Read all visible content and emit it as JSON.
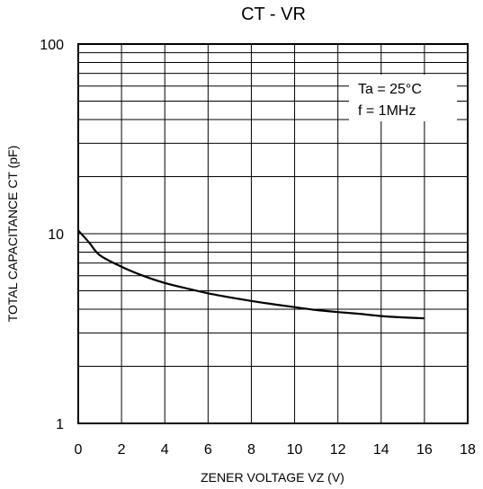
{
  "chart_data": {
    "type": "line",
    "title": "CT - VR",
    "xlabel": "ZENER VOLTAGE  VZ (V)",
    "ylabel": "TOTAL CAPACITANCE  CT (pF)",
    "xlim": [
      0,
      18
    ],
    "ylim": [
      1,
      100
    ],
    "yscale": "log",
    "grid": true,
    "x_ticks": [
      "0",
      "2",
      "4",
      "6",
      "8",
      "10",
      "12",
      "14",
      "16",
      "18"
    ],
    "y_ticks": [
      "1",
      "10",
      "100"
    ],
    "annotations": [
      "Ta = 25°C",
      "f = 1MHz"
    ],
    "series": [
      {
        "x": [
          0,
          0.5,
          1,
          2,
          3,
          4,
          5,
          6,
          7,
          8,
          9,
          10,
          11,
          12,
          13,
          14,
          15,
          16
        ],
        "y": [
          10.4,
          9.0,
          7.7,
          6.7,
          6.0,
          5.5,
          5.15,
          4.85,
          4.62,
          4.42,
          4.25,
          4.1,
          3.96,
          3.86,
          3.78,
          3.68,
          3.62,
          3.58
        ]
      }
    ]
  }
}
